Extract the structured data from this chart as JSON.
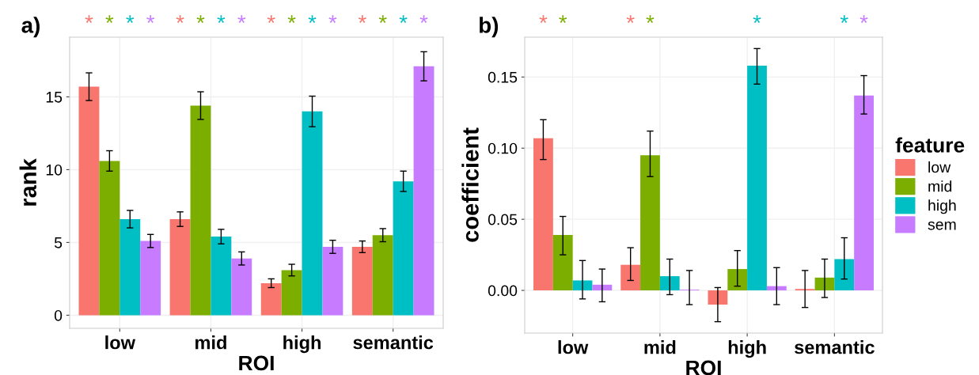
{
  "chart_data": [
    {
      "type": "bar",
      "title": "a)",
      "xlabel": "ROI",
      "ylabel": "rank",
      "categories": [
        "low",
        "mid",
        "high",
        "semantic"
      ],
      "series": [
        {
          "color": "#f8766d",
          "values": [
            15.7,
            6.6,
            2.2,
            4.7
          ],
          "errors": [
            0.95,
            0.5,
            0.3,
            0.4
          ]
        },
        {
          "color": "#7cae00",
          "values": [
            10.6,
            14.4,
            3.1,
            5.5
          ],
          "errors": [
            0.7,
            0.95,
            0.4,
            0.45
          ]
        },
        {
          "color": "#00bfc4",
          "values": [
            6.6,
            5.4,
            14.0,
            9.2
          ],
          "errors": [
            0.6,
            0.5,
            1.05,
            0.7
          ]
        },
        {
          "color": "#c77cff",
          "values": [
            5.1,
            3.9,
            4.7,
            17.1
          ],
          "errors": [
            0.45,
            0.45,
            0.45,
            1.0
          ]
        }
      ],
      "ylim": [
        -0.9,
        19.1
      ],
      "yticks": [
        0,
        5,
        10,
        15
      ],
      "grid": true,
      "annotations": [
        "*",
        "*",
        "*",
        "*",
        "*",
        "*",
        "*",
        "*",
        "*",
        "*",
        "*",
        "*",
        "*",
        "*",
        "*",
        "*"
      ]
    },
    {
      "type": "bar",
      "title": "b)",
      "xlabel": "ROI",
      "ylabel": "coefficient",
      "legend_title": "feature",
      "categories": [
        "low",
        "mid",
        "high",
        "semantic"
      ],
      "series": [
        {
          "name": "low",
          "color": "#f8766d",
          "values": [
            0.107,
            0.018,
            -0.01,
            0.001
          ],
          "errors": [
            [
              0.092,
              0.12
            ],
            [
              0.007,
              0.03
            ],
            [
              -0.022,
              0.002
            ],
            [
              -0.012,
              0.014
            ]
          ]
        },
        {
          "name": "mid",
          "color": "#7cae00",
          "values": [
            0.039,
            0.095,
            0.015,
            0.009
          ],
          "errors": [
            [
              0.025,
              0.052
            ],
            [
              0.08,
              0.112
            ],
            [
              0.003,
              0.028
            ],
            [
              -0.005,
              0.022
            ]
          ]
        },
        {
          "name": "high",
          "color": "#00bfc4",
          "values": [
            0.007,
            0.01,
            0.158,
            0.022
          ],
          "errors": [
            [
              -0.006,
              0.021
            ],
            [
              -0.003,
              0.022
            ],
            [
              0.145,
              0.17
            ],
            [
              0.008,
              0.037
            ]
          ]
        },
        {
          "name": "sem",
          "color": "#c77cff",
          "values": [
            0.004,
            0.0005,
            0.003,
            0.137
          ],
          "errors": [
            [
              -0.008,
              0.015
            ],
            [
              -0.01,
              0.014
            ],
            [
              -0.01,
              0.016
            ],
            [
              0.124,
              0.151
            ]
          ]
        }
      ],
      "ylim": [
        -0.03,
        0.178
      ],
      "yticks": [
        {
          "value": 0,
          "label": "0.00"
        },
        {
          "value": 0.05,
          "label": "0.05"
        },
        {
          "value": 0.1,
          "label": "0.10"
        },
        {
          "value": 0.15,
          "label": "0.15"
        }
      ],
      "grid": true,
      "legend": "right",
      "annotations": [
        "*",
        "*",
        "*",
        "*",
        "*",
        "*",
        "*"
      ]
    }
  ]
}
